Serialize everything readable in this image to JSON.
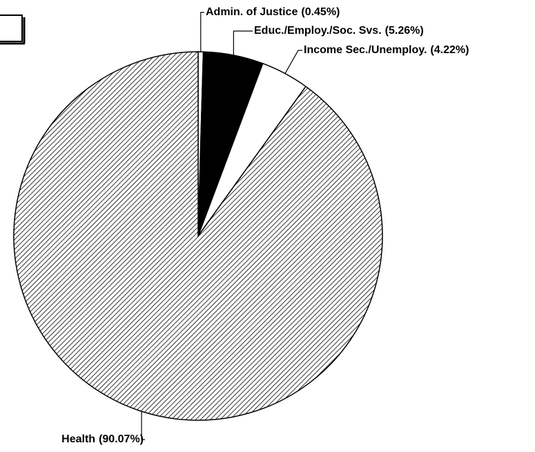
{
  "chart_data": {
    "type": "pie",
    "categories": [
      "Admin. of Justice",
      "Educ./Employ./Soc. Svs.",
      "Income Sec./Unemploy.",
      "Health"
    ],
    "values": [
      0.45,
      5.26,
      4.22,
      90.07
    ],
    "value_labels": [
      "(0.45%)",
      "(5.26%)",
      "(4.22%)",
      "(90.07%)"
    ],
    "colors": [
      "#ffffff",
      "#000000",
      "#ffffff",
      "#7f7f7f"
    ],
    "hatch": [
      false,
      false,
      false,
      true
    ]
  }
}
